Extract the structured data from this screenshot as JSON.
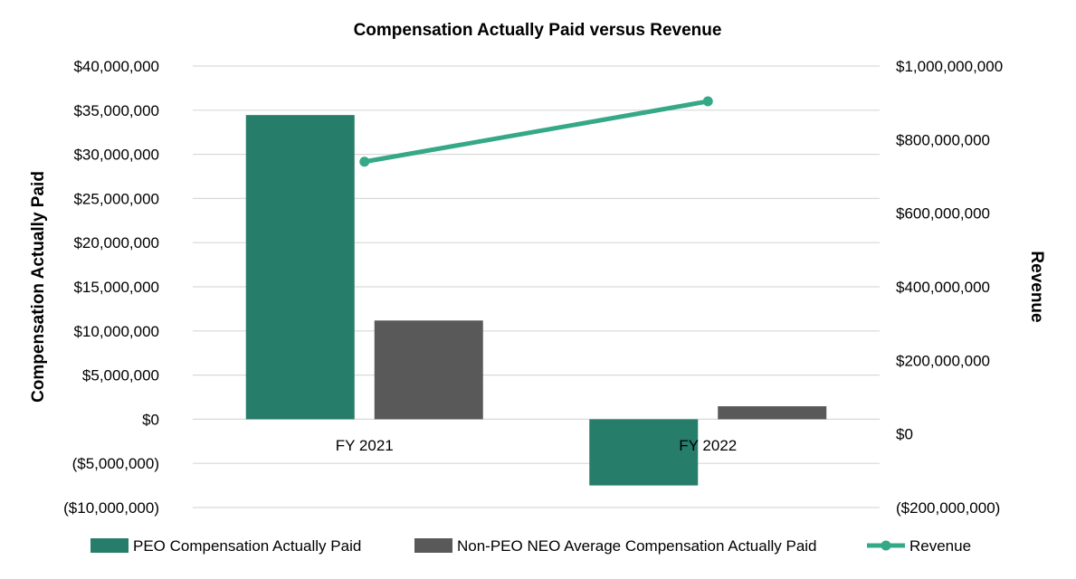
{
  "chart_data": {
    "type": "bar",
    "title": "Compensation Actually Paid versus Revenue",
    "categories": [
      "FY 2021",
      "FY 2022"
    ],
    "ylabel": "Compensation Actually Paid",
    "y2label": "Revenue",
    "ylim": [
      -10000000,
      40000000
    ],
    "y2lim": [
      -200000000,
      1000000000
    ],
    "yticks": [
      "($10,000,000)",
      "($5,000,000)",
      "$0",
      "$5,000,000",
      "$10,000,000",
      "$15,000,000",
      "$20,000,000",
      "$25,000,000",
      "$30,000,000",
      "$35,000,000",
      "$40,000,000"
    ],
    "y2ticks": [
      "($200,000,000)",
      "$0",
      "$200,000,000",
      "$400,000,000",
      "$600,000,000",
      "$800,000,000",
      "$1,000,000,000"
    ],
    "grid": true,
    "legend_position": "bottom",
    "series": [
      {
        "name": "PEO Compensation Actually Paid",
        "type": "bar",
        "axis": "left",
        "color": "#267D69",
        "values": [
          34450000,
          -7500000
        ]
      },
      {
        "name": "Non-PEO NEO Average Compensation Actually Paid",
        "type": "bar",
        "axis": "left",
        "color": "#595959",
        "values": [
          11180000,
          1470000
        ]
      },
      {
        "name": "Revenue",
        "type": "line",
        "axis": "right",
        "color": "#35A887",
        "values": [
          740000000,
          904000000
        ]
      }
    ]
  }
}
